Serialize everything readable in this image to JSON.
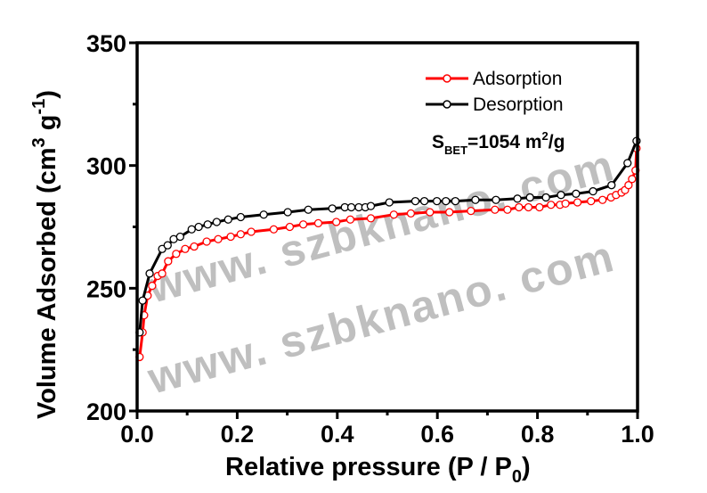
{
  "chart_data": {
    "type": "line",
    "xlabel_main": "Relative pressure (P / P",
    "xlabel_sub": "0",
    "xlabel_end": ")",
    "ylabel_main": "Volume Adsorbed (cm",
    "ylabel_sup1": "3",
    "ylabel_mid": " g",
    "ylabel_sup2": "-1",
    "ylabel_end": ")",
    "xlim": [
      0.0,
      1.0
    ],
    "ylim": [
      200,
      350
    ],
    "xticks": [
      "0.0",
      "0.2",
      "0.4",
      "0.6",
      "0.8",
      "1.0"
    ],
    "yticks": [
      "200",
      "250",
      "300",
      "350"
    ],
    "grid": false,
    "legend_placement": "top-right",
    "annotation": {
      "main": "S",
      "sub": "BET",
      "value": "=1054 m",
      "sup": "2",
      "unit": "/g"
    },
    "watermark": [
      "www. szbknano. com",
      "www. szbknano. com"
    ],
    "series": [
      {
        "name": "Adsorption",
        "color": "#ff0000",
        "x": [
          0.005,
          0.011,
          0.014,
          0.021,
          0.03,
          0.041,
          0.05,
          0.062,
          0.078,
          0.096,
          0.114,
          0.139,
          0.162,
          0.187,
          0.207,
          0.228,
          0.273,
          0.305,
          0.332,
          0.362,
          0.398,
          0.426,
          0.467,
          0.513,
          0.547,
          0.585,
          0.624,
          0.667,
          0.715,
          0.74,
          0.763,
          0.782,
          0.804,
          0.827,
          0.845,
          0.856,
          0.88,
          0.907,
          0.93,
          0.947,
          0.957,
          0.968,
          0.975,
          0.982,
          0.989,
          0.996,
          0.998
        ],
        "y": [
          222,
          232,
          239,
          247,
          251,
          255,
          256,
          261,
          264,
          266,
          267,
          269,
          270,
          271,
          272,
          273,
          274,
          275,
          276,
          276.5,
          277,
          278,
          278.5,
          280,
          280.5,
          281,
          281,
          281.5,
          282,
          282,
          283,
          283,
          283,
          284,
          284,
          284.5,
          285,
          285.5,
          286,
          287,
          288,
          289,
          290,
          292,
          294.5,
          298,
          307
        ]
      },
      {
        "name": "Desorption",
        "color": "#000000",
        "x": [
          0.005,
          0.011,
          0.025,
          0.05,
          0.061,
          0.073,
          0.086,
          0.109,
          0.123,
          0.141,
          0.159,
          0.182,
          0.207,
          0.253,
          0.301,
          0.342,
          0.39,
          0.415,
          0.428,
          0.443,
          0.456,
          0.467,
          0.504,
          0.556,
          0.574,
          0.599,
          0.617,
          0.636,
          0.676,
          0.717,
          0.76,
          0.785,
          0.817,
          0.847,
          0.877,
          0.911,
          0.948,
          0.98,
          0.998
        ],
        "y": [
          232,
          245,
          256,
          266,
          267.5,
          270,
          271,
          274,
          275,
          276,
          277,
          278,
          279,
          280,
          281,
          282,
          282.5,
          283,
          283,
          283,
          283,
          283.5,
          285,
          285.5,
          285.5,
          285.5,
          285.5,
          285.5,
          286,
          286,
          286.5,
          287,
          287,
          288,
          288.5,
          289.5,
          292,
          301,
          310
        ]
      }
    ]
  }
}
